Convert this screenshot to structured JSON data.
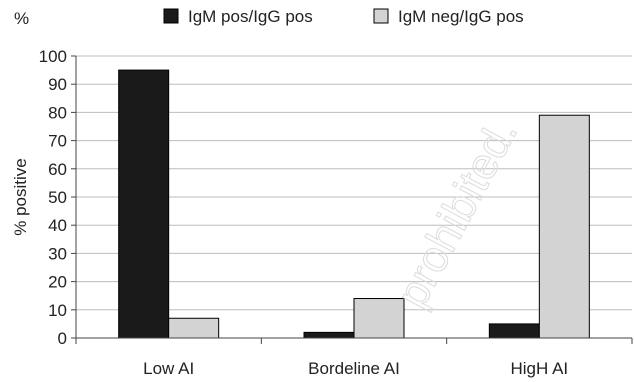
{
  "chart_data": {
    "type": "bar",
    "title": "",
    "corner_label": "%",
    "ylabel": "% positive",
    "xlabel": "",
    "ylim": [
      0,
      100
    ],
    "yticks": [
      0,
      10,
      20,
      30,
      40,
      50,
      60,
      70,
      80,
      90,
      100
    ],
    "grid": true,
    "legend_position": "top",
    "categories": [
      "Low AI",
      "Bordeline AI",
      "HigH AI"
    ],
    "series": [
      {
        "name": "IgM pos/IgG pos",
        "color": "#1a1a1a",
        "values": [
          95,
          2,
          5
        ]
      },
      {
        "name": "IgM neg/IgG pos",
        "color": "#d3d3d3",
        "values": [
          7,
          14,
          79
        ]
      }
    ],
    "watermark": "prohibited."
  }
}
